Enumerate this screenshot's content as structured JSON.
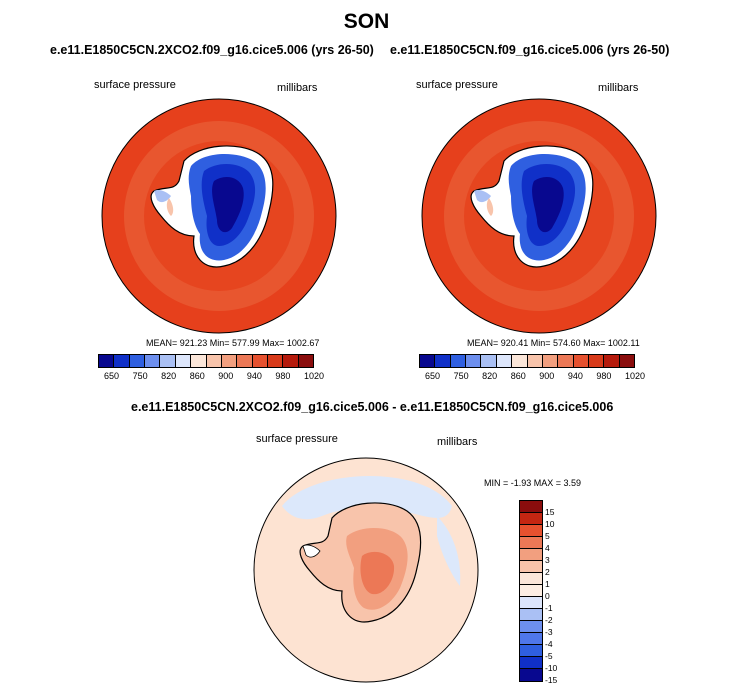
{
  "title": "SON",
  "panels": [
    {
      "title": "e.e11.E1850C5CN.2XCO2.f09_g16.cice5.006 (yrs 26-50)",
      "variable": "surface pressure",
      "units": "millibars",
      "stats": "MEAN= 921.23  Min= 577.99  Max= 1002.67"
    },
    {
      "title": "e.e11.E1850C5CN.f09_g16.cice5.006 (yrs 26-50)",
      "variable": "surface pressure",
      "units": "millibars",
      "stats": "MEAN= 920.41  Min= 574.60  Max= 1002.11"
    },
    {
      "title": "e.e11.E1850C5CN.2XCO2.f09_g16.cice5.006 - e.e11.E1850C5CN.f09_g16.cice5.006",
      "variable": "surface pressure",
      "units": "millibars",
      "stats": "MIN =  -1.93 MAX =   3.59"
    }
  ],
  "colorbar_abs": {
    "labels": [
      "650",
      "750",
      "820",
      "860",
      "900",
      "940",
      "980",
      "1020"
    ],
    "colors": [
      "#08088f",
      "#1030c8",
      "#2f5fe0",
      "#6d8fee",
      "#aac0f4",
      "#dde6fb",
      "#fbe6d9",
      "#f8c4ab",
      "#f29f7f",
      "#ec7856",
      "#e6512f",
      "#d83a1a",
      "#b51a0c",
      "#8a0d0d"
    ]
  },
  "colorbar_diff": {
    "labels": [
      "15",
      "10",
      "5",
      "4",
      "3",
      "2",
      "1",
      "0",
      "-1",
      "-2",
      "-3",
      "-4",
      "-5",
      "-10",
      "-15"
    ],
    "colors": [
      "#8a0d0d",
      "#c42612",
      "#e6512f",
      "#ec7856",
      "#f29f7f",
      "#f8c4ab",
      "#fbe6d9",
      "#fdeee3",
      "#dde6fb",
      "#aac0f4",
      "#6d8fee",
      "#4f77ea",
      "#2f5fe0",
      "#1030c8",
      "#08088f"
    ]
  },
  "map_colors": {
    "ocean_high": "#e6401c",
    "ocean_ring": "#e8562f",
    "diff_base": "#fde3d2",
    "diff_pos": "#f29f7f",
    "diff_strong": "#ec7856",
    "diff_neg": "#dce8fb"
  }
}
